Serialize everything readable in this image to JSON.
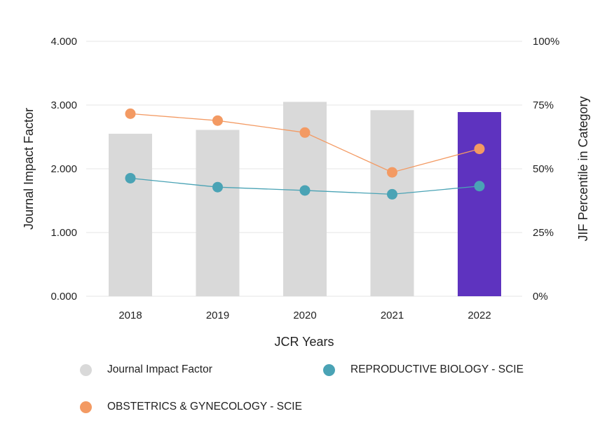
{
  "chart_data": {
    "type": "bar+line",
    "categories": [
      "2018",
      "2019",
      "2020",
      "2021",
      "2022"
    ],
    "xlabel": "JCR Years",
    "ylabel_left": "Journal Impact Factor",
    "ylabel_right": "JIF Percentile in Category",
    "ylim_left": [
      0,
      4
    ],
    "ylim_right": [
      0,
      100
    ],
    "left_ticks": [
      "0.000",
      "1.000",
      "2.000",
      "3.000",
      "4.000"
    ],
    "right_ticks": [
      "0%",
      "25%",
      "50%",
      "75%",
      "100%"
    ],
    "bars": {
      "name": "Journal Impact Factor",
      "values": [
        2.55,
        2.61,
        3.05,
        2.92,
        2.89
      ],
      "color": "#d9d9d9",
      "highlight_color": "#5e33bf",
      "highlight_index": 4
    },
    "series": [
      {
        "name": "REPRODUCTIVE BIOLOGY - SCIE",
        "values": [
          46.3,
          42.8,
          41.5,
          40.0,
          43.2
        ],
        "color": "#4aa3b5"
      },
      {
        "name": "OBSTETRICS & GYNECOLOGY - SCIE",
        "values": [
          71.6,
          68.9,
          64.2,
          48.6,
          57.8
        ],
        "color": "#f39a63"
      }
    ],
    "gridlines": true
  },
  "legend": {
    "items": [
      {
        "label": "Journal Impact Factor",
        "color": "#d9d9d9"
      },
      {
        "label": "REPRODUCTIVE BIOLOGY - SCIE",
        "color": "#4aa3b5"
      },
      {
        "label": "OBSTETRICS & GYNECOLOGY - SCIE",
        "color": "#f39a63"
      }
    ]
  }
}
